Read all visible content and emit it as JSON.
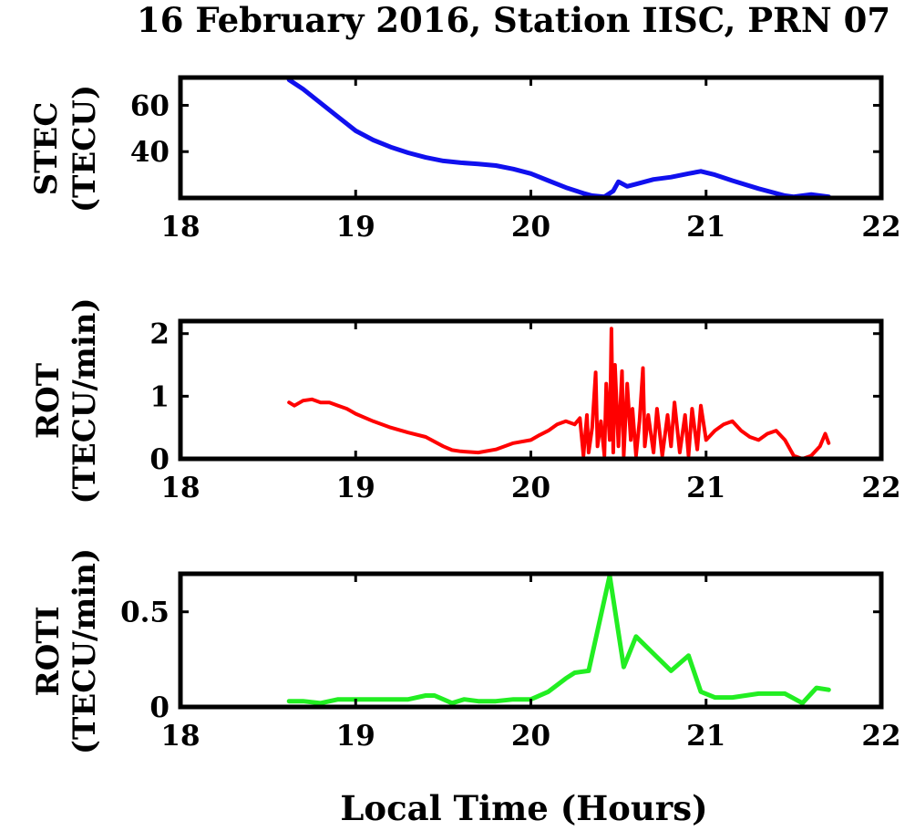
{
  "figure": {
    "title": "16 February 2016, Station IISC, PRN 07",
    "xlabel": "Local Time (Hours)"
  },
  "chart_data": [
    {
      "type": "line",
      "ylabel": [
        "STEC",
        "(TECU)"
      ],
      "xlim": [
        18,
        22
      ],
      "ylim": [
        20,
        72
      ],
      "xticks": [
        18,
        19,
        20,
        21,
        22
      ],
      "yticks": [
        40,
        60
      ],
      "grid": false,
      "series": [
        {
          "color": "#1010ee",
          "x": [
            18.62,
            18.7,
            18.8,
            18.9,
            19.0,
            19.1,
            19.2,
            19.3,
            19.4,
            19.5,
            19.6,
            19.7,
            19.8,
            19.9,
            20.0,
            20.1,
            20.2,
            20.3,
            20.35,
            20.42,
            20.47,
            20.5,
            20.55,
            20.6,
            20.7,
            20.8,
            20.9,
            20.97,
            21.05,
            21.15,
            21.3,
            21.45,
            21.5,
            21.6,
            21.7
          ],
          "y": [
            71,
            67,
            61,
            55,
            49,
            45,
            42,
            39.5,
            37.5,
            36,
            35.2,
            34.7,
            34,
            32.5,
            30.5,
            27.5,
            24.5,
            22,
            21,
            20.5,
            23,
            27,
            25,
            26,
            28,
            29,
            30.5,
            31.5,
            30,
            27.5,
            24,
            21,
            20.5,
            21.5,
            20.5
          ]
        }
      ]
    },
    {
      "type": "line",
      "ylabel": [
        "ROT",
        "(TECU/min)"
      ],
      "xlim": [
        18,
        22
      ],
      "ylim": [
        0,
        2.2
      ],
      "xticks": [
        18,
        19,
        20,
        21,
        22
      ],
      "yticks": [
        0,
        1,
        2
      ],
      "grid": false,
      "series": [
        {
          "color": "#ff0000",
          "x": [
            18.62,
            18.65,
            18.7,
            18.75,
            18.8,
            18.85,
            18.9,
            18.95,
            19.0,
            19.1,
            19.2,
            19.3,
            19.4,
            19.5,
            19.55,
            19.6,
            19.7,
            19.8,
            19.9,
            20.0,
            20.05,
            20.1,
            20.15,
            20.2,
            20.25,
            20.28,
            20.3,
            20.32,
            20.33,
            20.35,
            20.37,
            20.38,
            20.4,
            20.42,
            20.43,
            20.45,
            20.46,
            20.47,
            20.48,
            20.5,
            20.52,
            20.53,
            20.55,
            20.57,
            20.58,
            20.6,
            20.62,
            20.64,
            20.65,
            20.67,
            20.7,
            20.72,
            20.75,
            20.78,
            20.8,
            20.82,
            20.85,
            20.88,
            20.9,
            20.92,
            20.95,
            20.97,
            21.0,
            21.05,
            21.1,
            21.15,
            21.2,
            21.25,
            21.3,
            21.35,
            21.4,
            21.45,
            21.5,
            21.55,
            21.6,
            21.65,
            21.68,
            21.7
          ],
          "y": [
            0.9,
            0.85,
            0.93,
            0.95,
            0.9,
            0.9,
            0.85,
            0.8,
            0.72,
            0.6,
            0.5,
            0.42,
            0.35,
            0.2,
            0.14,
            0.12,
            0.1,
            0.15,
            0.25,
            0.3,
            0.38,
            0.45,
            0.55,
            0.6,
            0.55,
            0.65,
            0.05,
            0.7,
            0.1,
            0.5,
            1.38,
            0.2,
            0.6,
            0.05,
            1.2,
            0.3,
            2.08,
            0.1,
            1.5,
            0.2,
            1.4,
            0.05,
            1.2,
            0.3,
            0.8,
            0.05,
            0.6,
            1.45,
            0.2,
            0.7,
            0.1,
            0.8,
            0.05,
            0.7,
            0.2,
            0.9,
            0.1,
            0.7,
            0.05,
            0.8,
            0.15,
            0.85,
            0.3,
            0.45,
            0.55,
            0.6,
            0.45,
            0.35,
            0.3,
            0.4,
            0.45,
            0.3,
            0.05,
            0.0,
            0.05,
            0.2,
            0.4,
            0.25
          ]
        }
      ]
    },
    {
      "type": "line",
      "ylabel": [
        "ROTI",
        "(TECU/min)"
      ],
      "xlim": [
        18,
        22
      ],
      "ylim": [
        0,
        0.7
      ],
      "xticks": [
        18,
        19,
        20,
        21,
        22
      ],
      "yticks": [
        0,
        0.5
      ],
      "grid": false,
      "series": [
        {
          "color": "#22ee22",
          "x": [
            18.62,
            18.7,
            18.8,
            18.9,
            19.0,
            19.1,
            19.2,
            19.3,
            19.4,
            19.45,
            19.55,
            19.62,
            19.7,
            19.8,
            19.9,
            20.0,
            20.1,
            20.2,
            20.25,
            20.33,
            20.45,
            20.53,
            20.6,
            20.7,
            20.8,
            20.9,
            20.97,
            21.05,
            21.15,
            21.3,
            21.45,
            21.55,
            21.63,
            21.7
          ],
          "y": [
            0.03,
            0.03,
            0.02,
            0.04,
            0.04,
            0.04,
            0.04,
            0.04,
            0.06,
            0.06,
            0.02,
            0.04,
            0.03,
            0.03,
            0.04,
            0.04,
            0.08,
            0.15,
            0.18,
            0.19,
            0.69,
            0.21,
            0.37,
            0.28,
            0.19,
            0.27,
            0.08,
            0.05,
            0.05,
            0.07,
            0.07,
            0.02,
            0.1,
            0.09
          ]
        }
      ]
    }
  ]
}
